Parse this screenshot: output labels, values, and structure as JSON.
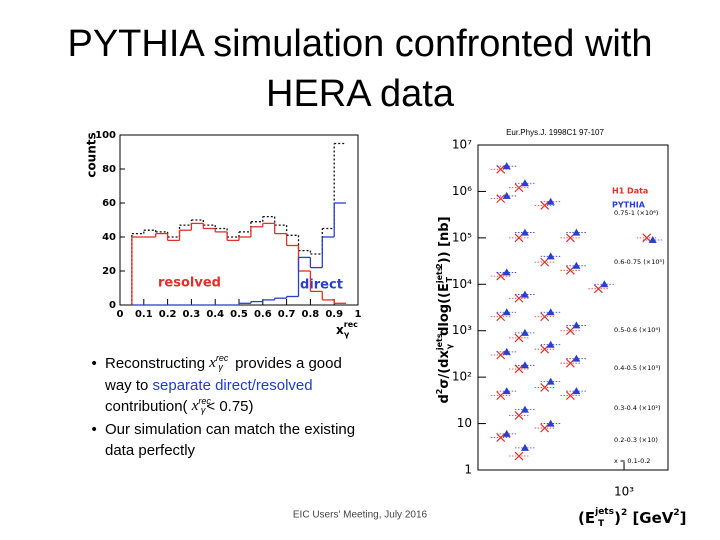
{
  "title": "PYTHIA simulation confronted with HERA data",
  "bullets": [
    [
      "Reconstructing ",
      "x",
      "rec",
      "γ",
      " provides a good",
      "way to ",
      "separate direct/resolved",
      "contribution( ",
      "x",
      "rec",
      "γ",
      "< 0.75)"
    ],
    [
      "Our simulation can match the existing",
      "data perfectly"
    ]
  ],
  "footer": "EIC Users' Meeting, July 2016",
  "reference": "Eur.Phys.J. 1998C1 97-107",
  "chart_data": [
    {
      "type": "histogram",
      "ylabel": "counts",
      "xlabel": [
        "x",
        "rec",
        "γ"
      ],
      "bins": [
        0.05,
        0.1,
        0.15,
        0.2,
        0.25,
        0.3,
        0.35,
        0.4,
        0.45,
        0.5,
        0.55,
        0.6,
        0.65,
        0.7,
        0.75,
        0.8,
        0.85,
        0.9,
        0.95
      ],
      "series": [
        {
          "color": "#111111",
          "dash": true,
          "values": [
            42,
            44,
            43,
            40,
            47,
            50,
            47,
            45,
            40,
            43,
            49,
            52,
            47,
            41,
            32,
            30,
            45,
            95
          ]
        },
        {
          "name": "resolved",
          "color": "#e0302a",
          "values": [
            40,
            40,
            42,
            38,
            44,
            48,
            45,
            43,
            38,
            40,
            46,
            48,
            42,
            35,
            20,
            8,
            3,
            1
          ]
        },
        {
          "name": "direct",
          "color": "#2a3fd0",
          "values": [
            0,
            0,
            0,
            0,
            0,
            0,
            0,
            0,
            0,
            1,
            2,
            3,
            4,
            5,
            28,
            22,
            40,
            60
          ]
        }
      ],
      "xlim": [
        0,
        1
      ],
      "xticks": [
        0,
        0.1,
        0.2,
        0.3,
        0.4,
        0.5,
        0.6,
        0.7,
        0.8,
        0.9,
        1
      ],
      "ylim": [
        0,
        100
      ],
      "yticks": [
        0,
        20,
        40,
        60,
        80,
        100
      ]
    },
    {
      "type": "scatter",
      "log_x": true,
      "log_y": true,
      "ylabel": [
        "d",
        "2",
        "σ/(dx",
        "jets",
        "γ",
        "dlog((E",
        "jets",
        "T",
        "2",
        ")) [nb]"
      ],
      "xlabel": [
        "(E",
        "jets",
        "T",
        ")",
        "2",
        " [GeV",
        "2",
        "]"
      ],
      "xlim": [
        100,
        2000
      ],
      "xticks": [
        {
          "value": 1000,
          "label": "10³"
        }
      ],
      "ylim": [
        1,
        10000000
      ],
      "yticks": [
        1,
        10,
        {
          "value": 100,
          "label": "10²"
        },
        {
          "value": 1000,
          "label": "10³"
        },
        {
          "value": 10000,
          "label": "10⁴"
        },
        {
          "value": 100000,
          "label": "10⁵"
        },
        {
          "value": 1000000,
          "label": "10⁶"
        },
        {
          "value": 10000000,
          "label": "10⁷"
        }
      ],
      "legend": "top-right",
      "series": [
        {
          "name": "H1 Data",
          "color": "#e0302a",
          "marker": "cross",
          "x": [
            150,
            200,
            300,
            450,
            1500,
            150,
            200,
            300,
            450,
            700,
            150,
            200,
            300,
            450,
            150,
            200,
            300,
            450,
            150,
            200,
            300,
            450,
            150,
            200,
            300,
            150,
            200
          ],
          "values": [
            3000000,
            1200000,
            500000,
            100000,
            100000,
            700000,
            100000,
            30000,
            20000,
            8000,
            15000,
            5000,
            2000,
            1000,
            2000,
            700,
            400,
            200,
            300,
            150,
            60,
            40,
            40,
            15,
            8,
            5,
            2
          ]
        },
        {
          "name": "PYTHIA",
          "color": "#2a3fd0",
          "marker": "triangle",
          "x": [
            150,
            200,
            300,
            450,
            1500,
            150,
            200,
            300,
            450,
            700,
            150,
            200,
            300,
            450,
            150,
            200,
            300,
            450,
            150,
            200,
            300,
            450,
            150,
            200,
            300,
            150,
            200
          ],
          "values": [
            3500000,
            1500000,
            600000,
            130000,
            90000,
            800000,
            130000,
            40000,
            25000,
            10000,
            18000,
            6000,
            2500,
            1300,
            2500,
            900,
            500,
            250,
            350,
            180,
            80,
            50,
            50,
            20,
            10,
            6,
            3
          ]
        }
      ],
      "annotations": [
        "0.75-1 (×10⁶)",
        "0.6-0.75 (×10⁵)",
        "0.5-0.6 (×10⁴)",
        "0.4-0.5 (×10³)",
        "0.3-0.4 (×10²)",
        "0.2-0.3 (×10)",
        "x = 0.1-0.2"
      ]
    }
  ]
}
